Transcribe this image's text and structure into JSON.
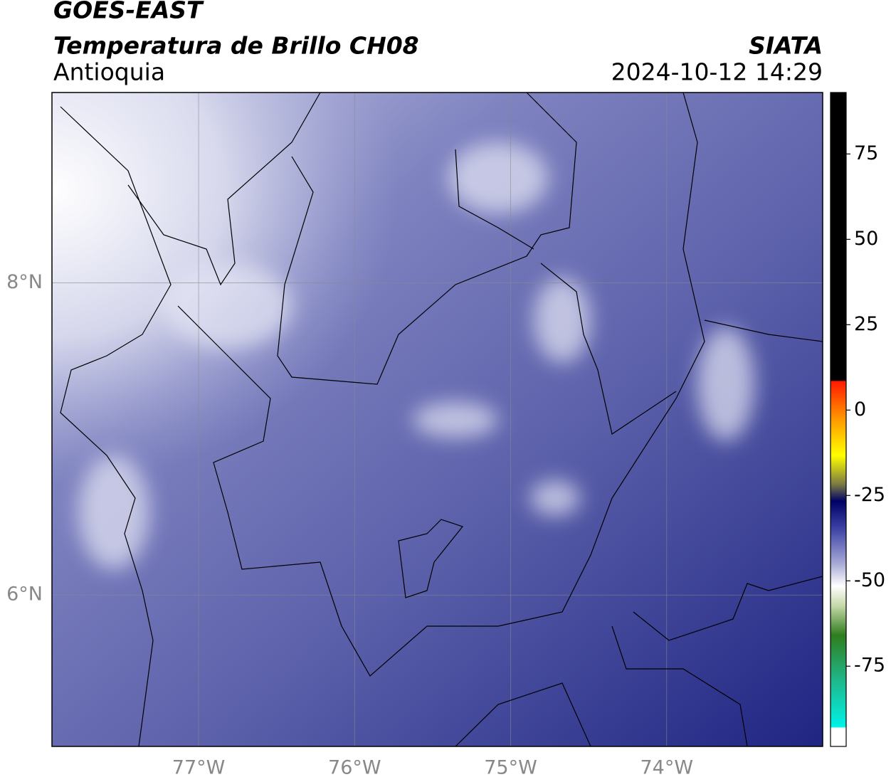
{
  "header": {
    "title": "GOES-EAST",
    "subtitle": "Temperatura de Brillo CH08",
    "region": "Antioquia",
    "source": "SIATA",
    "datetime": "2024-10-12 14:29"
  },
  "map": {
    "xlim": [
      -77.94,
      -73.0
    ],
    "ylim": [
      5.03,
      9.22
    ],
    "grid": true,
    "xticks": [
      {
        "value": -77,
        "label": "77°W"
      },
      {
        "value": -76,
        "label": "76°W"
      },
      {
        "value": -75,
        "label": "75°W"
      },
      {
        "value": -74,
        "label": "74°W"
      }
    ],
    "yticks": [
      {
        "value": 6,
        "label": "6°N"
      },
      {
        "value": 8,
        "label": "8°N"
      }
    ]
  },
  "colorbar": {
    "ylim": [
      -98.5,
      93
    ],
    "yticks": [
      -75,
      -50,
      -25,
      0,
      25,
      50,
      75
    ]
  }
}
